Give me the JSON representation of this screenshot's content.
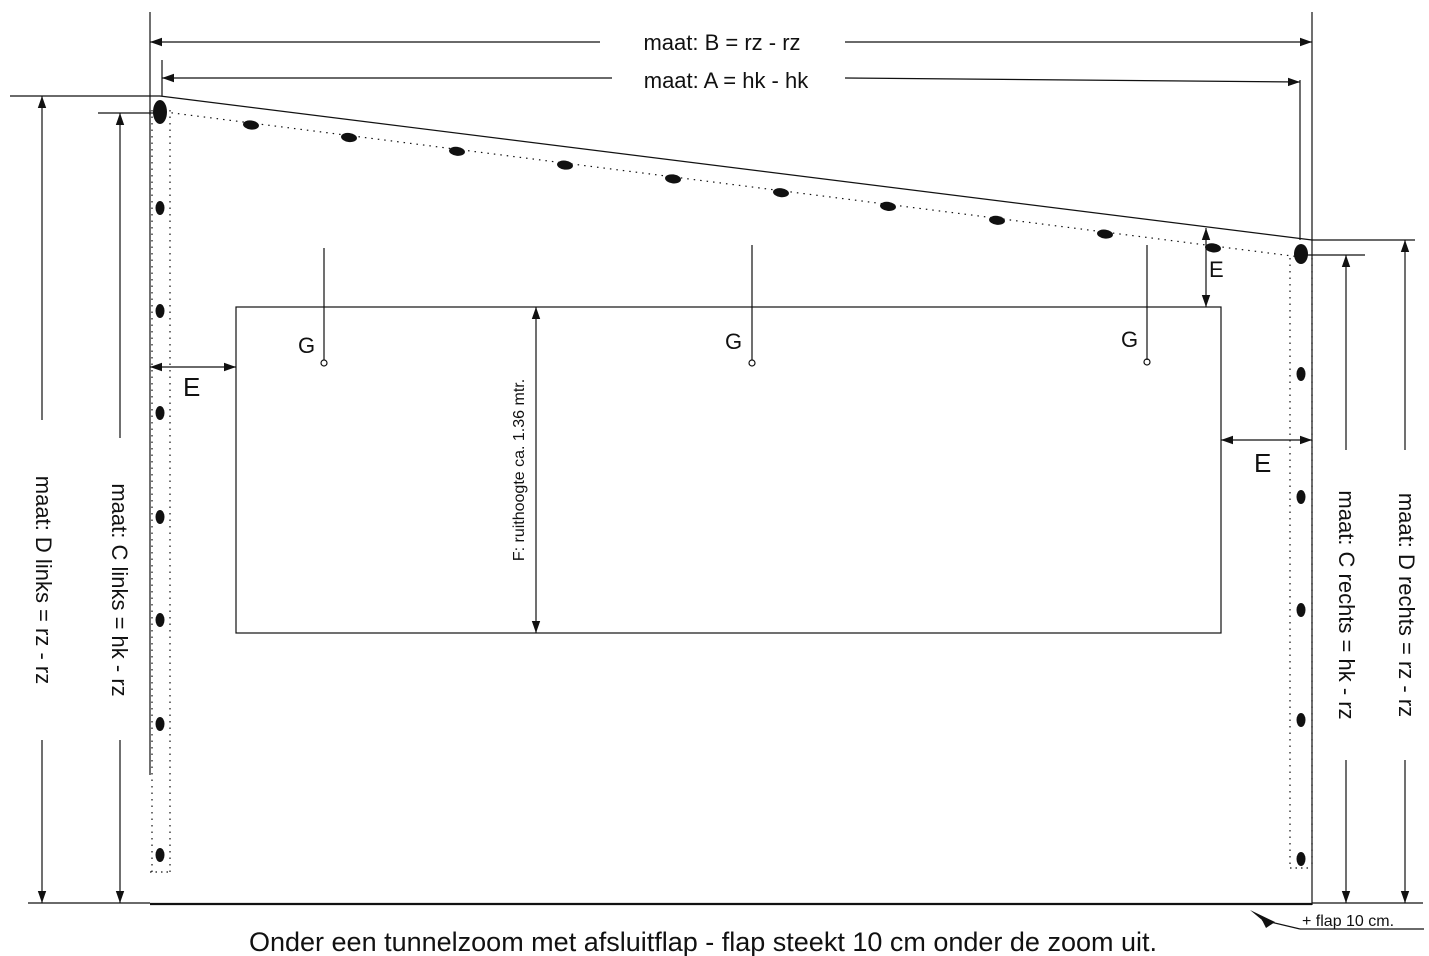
{
  "labels": {
    "dim_b": "maat: B = rz - rz",
    "dim_a": "maat: A = hk - hk",
    "dim_d_left": "maat: D links = rz - rz",
    "dim_c_left": "maat: C links = hk - rz",
    "dim_c_right": "maat: C rechts = hk - rz",
    "dim_d_right": "maat: D rechts = rz - rz",
    "window_height": "F: ruithoogte ca. 1.36 mtr.",
    "spacing": "E",
    "anchor": "G",
    "flap_note": "+ flap 10 cm.",
    "caption": "Onder een tunnelzoom met afsluitflap - flap steekt 10 cm onder de zoom uit."
  },
  "colors": {
    "line": "#111111",
    "background": "#ffffff"
  }
}
